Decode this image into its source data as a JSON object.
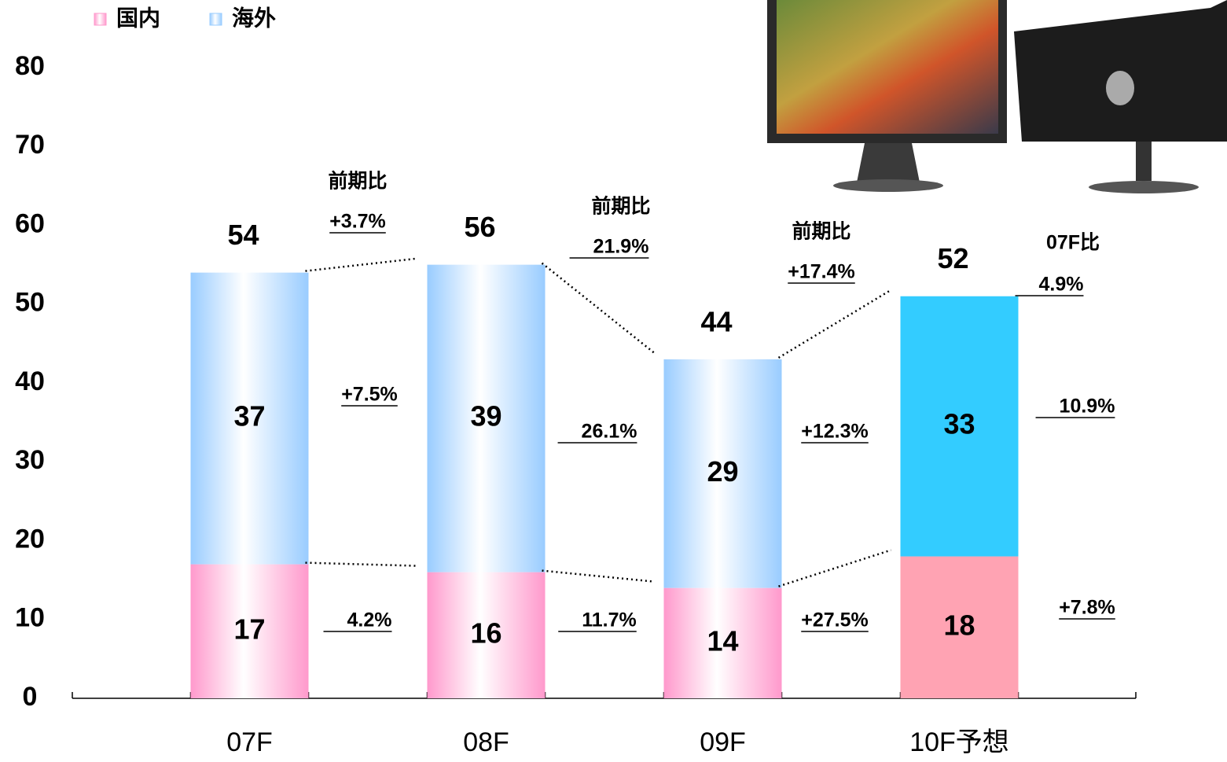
{
  "chart_data": {
    "type": "stacked_bar",
    "legend": "top-left",
    "categories": [
      "07F",
      "08F",
      "09F",
      "10F予想"
    ],
    "fill": [
      "gradient",
      "gradient",
      "gradient",
      "solid"
    ],
    "series": [
      {
        "name": "国内",
        "color": "#ff99cc",
        "solid_color": "#ffa3b3",
        "values": [
          17,
          16,
          14,
          18
        ]
      },
      {
        "name": "海外",
        "color": "#99ccff",
        "solid_color": "#33ccff",
        "values": [
          37,
          39,
          29,
          33
        ]
      }
    ],
    "totals": [
      54,
      56,
      44,
      52
    ],
    "ylim": [
      0,
      80
    ],
    "yticks": [
      0,
      10,
      20,
      30,
      40,
      50,
      60,
      70,
      80
    ],
    "changes": [
      {
        "label": "前期比",
        "total": "+3.7%",
        "overseas": "+7.5%",
        "domestic": "4.2%"
      },
      {
        "label": "前期比",
        "total": "21.9%",
        "overseas": "26.1%",
        "domestic": "11.7%"
      },
      {
        "label": "前期比",
        "total": "+17.4%",
        "overseas": "+12.3%",
        "domestic": "+27.5%"
      },
      {
        "label": "07F比",
        "total": "4.9%",
        "overseas": "10.9%",
        "domestic": "+7.8%"
      }
    ]
  }
}
